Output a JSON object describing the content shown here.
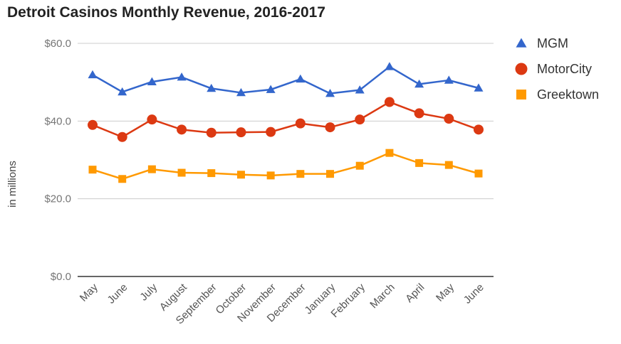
{
  "chart_data": {
    "type": "line",
    "title": "Detroit Casinos Monthly Revenue, 2016-2017",
    "xlabel": "",
    "ylabel": "in millions",
    "ylim": [
      0,
      60
    ],
    "yticks": [
      {
        "value": 0,
        "label": "$0.0"
      },
      {
        "value": 20,
        "label": "$20.0"
      },
      {
        "value": 40,
        "label": "$40.0"
      },
      {
        "value": 60,
        "label": "$60.0"
      }
    ],
    "categories": [
      "May",
      "June",
      "July",
      "August",
      "September",
      "October",
      "November",
      "December",
      "January",
      "February",
      "March",
      "April",
      "May",
      "June"
    ],
    "series": [
      {
        "name": "MGM",
        "marker": "triangle",
        "color": "#3366cc",
        "values": [
          51.9,
          47.5,
          50.1,
          51.3,
          48.4,
          47.3,
          48.1,
          50.8,
          47.1,
          48.0,
          54.0,
          49.5,
          50.5,
          48.5
        ]
      },
      {
        "name": "MotorCity",
        "marker": "circle",
        "color": "#dc3912",
        "values": [
          39.0,
          35.9,
          40.4,
          37.8,
          37.0,
          37.1,
          37.2,
          39.4,
          38.4,
          40.4,
          44.9,
          42.0,
          40.6,
          37.8
        ]
      },
      {
        "name": "Greektown",
        "marker": "square",
        "color": "#ff9900",
        "values": [
          27.5,
          25.1,
          27.6,
          26.7,
          26.6,
          26.2,
          26.0,
          26.4,
          26.4,
          28.5,
          31.8,
          29.2,
          28.7,
          26.5
        ]
      }
    ],
    "grid": true,
    "legend_position": "right"
  }
}
